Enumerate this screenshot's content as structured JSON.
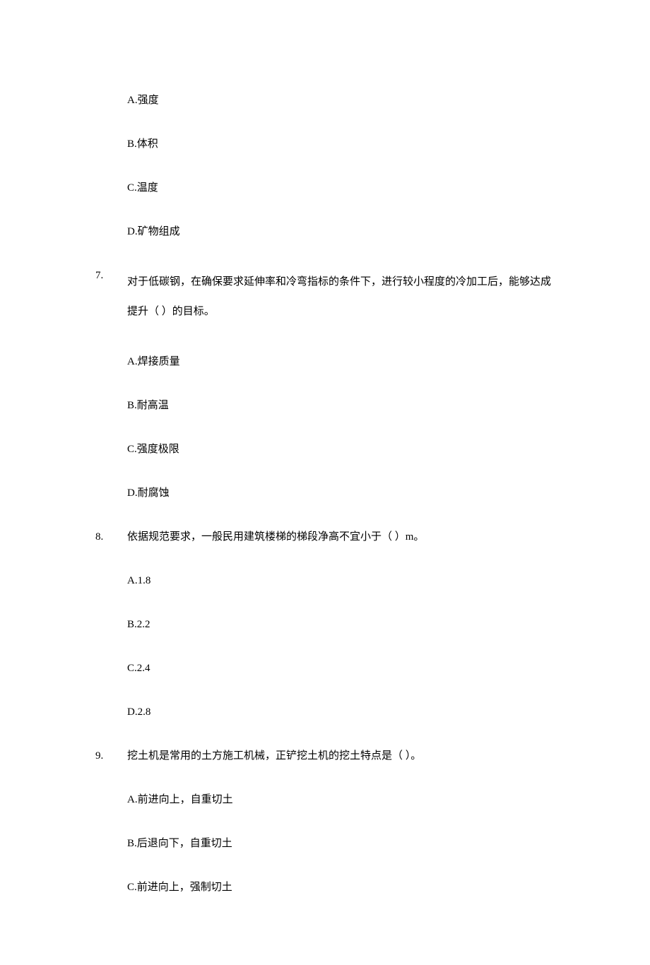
{
  "text_color": "#000000",
  "background_color": "#ffffff",
  "font_family": "SimSun",
  "font_size_pt": 11,
  "questions": [
    {
      "number": "",
      "stem": "",
      "options": [
        {
          "label": "A.强度"
        },
        {
          "label": "B.体积"
        },
        {
          "label": "C.温度"
        },
        {
          "label": "D.矿物组成"
        }
      ]
    },
    {
      "number": "7.",
      "stem": "对于低碳钢，在确保要求延伸率和冷弯指标的条件下，进行较小程度的冷加工后，能够达成提升（  ）的目标。",
      "options": [
        {
          "label": "A.焊接质量"
        },
        {
          "label": "B.耐高温"
        },
        {
          "label": "C.强度极限"
        },
        {
          "label": "D.耐腐蚀"
        }
      ]
    },
    {
      "number": "8.",
      "stem": "依据规范要求，一般民用建筑楼梯的梯段净高不宜小于（  ）m。",
      "options": [
        {
          "label": "A.1.8"
        },
        {
          "label": "B.2.2"
        },
        {
          "label": "C.2.4"
        },
        {
          "label": "D.2.8"
        }
      ]
    },
    {
      "number": "9.",
      "stem": "挖土机是常用的土方施工机械，正铲挖土机的挖土特点是（  ）。",
      "options": [
        {
          "label": "A.前进向上，自重切土"
        },
        {
          "label": "B.后退向下，自重切土"
        },
        {
          "label": "C.前进向上，强制切土"
        }
      ]
    }
  ]
}
